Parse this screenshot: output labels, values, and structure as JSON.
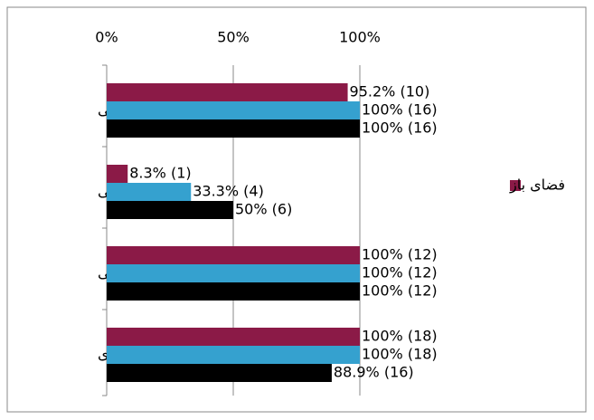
{
  "chart_data": {
    "type": "hbar",
    "categories": [
      "فارسی",
      "انگلیسی",
      "ژاپنی",
      "تایلندی"
    ],
    "series": [
      {
        "name": "فضای باز",
        "color": "#8b1a47",
        "values": [
          95.2,
          8.3,
          100,
          100
        ],
        "value_labels": [
          "95.2% (10)",
          "8.3% (1)",
          "100% (12)",
          "100% (18)"
        ]
      },
      {
        "color": "#35a1cf",
        "values": [
          100,
          33.3,
          100,
          100
        ],
        "value_labels": [
          "100% (16)",
          "33.3% (4)",
          "100% (12)",
          "100% (18)"
        ]
      },
      {
        "color": "#000000",
        "values": [
          100,
          50,
          100,
          88.9
        ],
        "value_labels": [
          "100% (16)",
          "50% (6)",
          "100% (12)",
          "88.9% (16)"
        ]
      }
    ],
    "xlim": [
      0,
      100
    ],
    "xticks": [
      {
        "value": 0,
        "label": "0%"
      },
      {
        "value": 50,
        "label": "50%"
      },
      {
        "value": 100,
        "label": "100%"
      }
    ],
    "grid": true,
    "legend": "right"
  }
}
